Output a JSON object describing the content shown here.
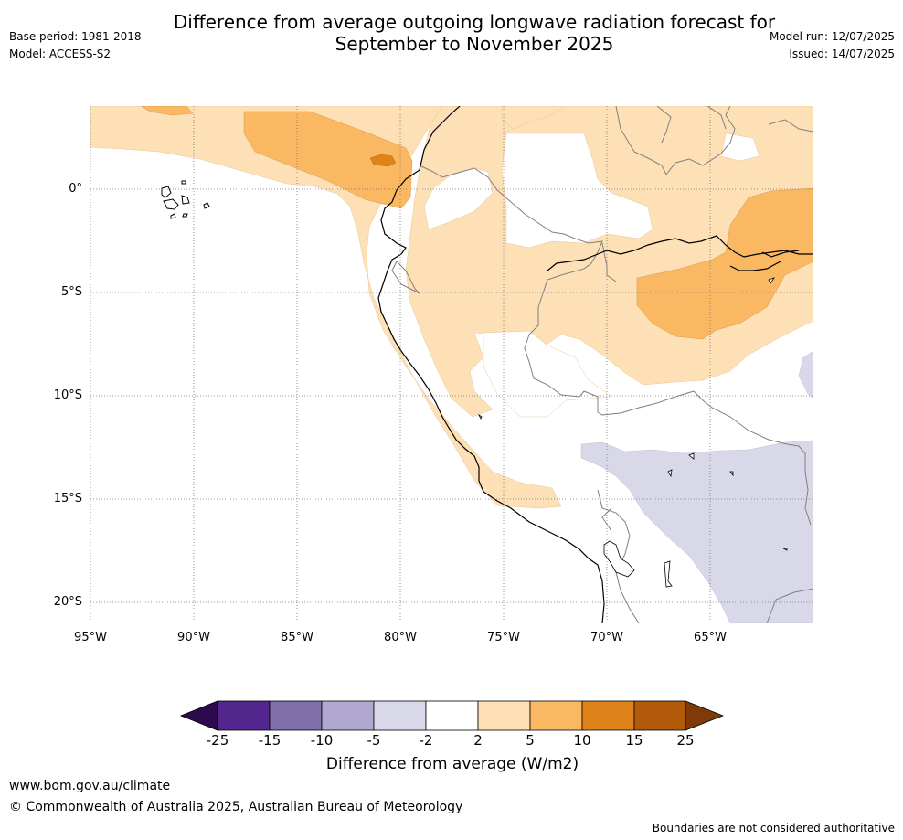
{
  "title": {
    "line1": "Difference from average outgoing longwave radiation forecast for",
    "line2": "September to November 2025"
  },
  "header": {
    "base_period": "Base period: 1981-2018",
    "model": "Model: ACCESS-S2",
    "model_run": "Model run: 12/07/2025",
    "issued": "Issued: 14/07/2025"
  },
  "map": {
    "latitude_labels": [
      "0°",
      "5°S",
      "10°S",
      "15°S",
      "20°S"
    ],
    "longitude_labels": [
      "95°W",
      "90°W",
      "85°W",
      "80°W",
      "75°W",
      "70°W",
      "65°W"
    ]
  },
  "legend": {
    "tick_labels": [
      "-25",
      "-15",
      "-10",
      "-5",
      "-2",
      "2",
      "5",
      "10",
      "15",
      "25"
    ],
    "title": "Difference from average (W/m2)",
    "colors": {
      "below_min": "#2d0a4e",
      "neg_25_15": "#54278f",
      "neg_15_10": "#7f6faa",
      "neg_10_5": "#b0a8cf",
      "neg_5_2": "#d8d8e8",
      "neutral": "#ffffff",
      "pos_2_5": "#fde0b5",
      "pos_5_10": "#fbb863",
      "pos_10_15": "#e0821a",
      "pos_15_25": "#b35a0a",
      "above_max": "#7f3a08"
    }
  },
  "footer": {
    "website": "www.bom.gov.au/climate",
    "copyright": "© Commonwealth of Australia 2025, Australian Bureau of Meteorology",
    "disclaimer": "Boundaries are not considered authoritative"
  }
}
